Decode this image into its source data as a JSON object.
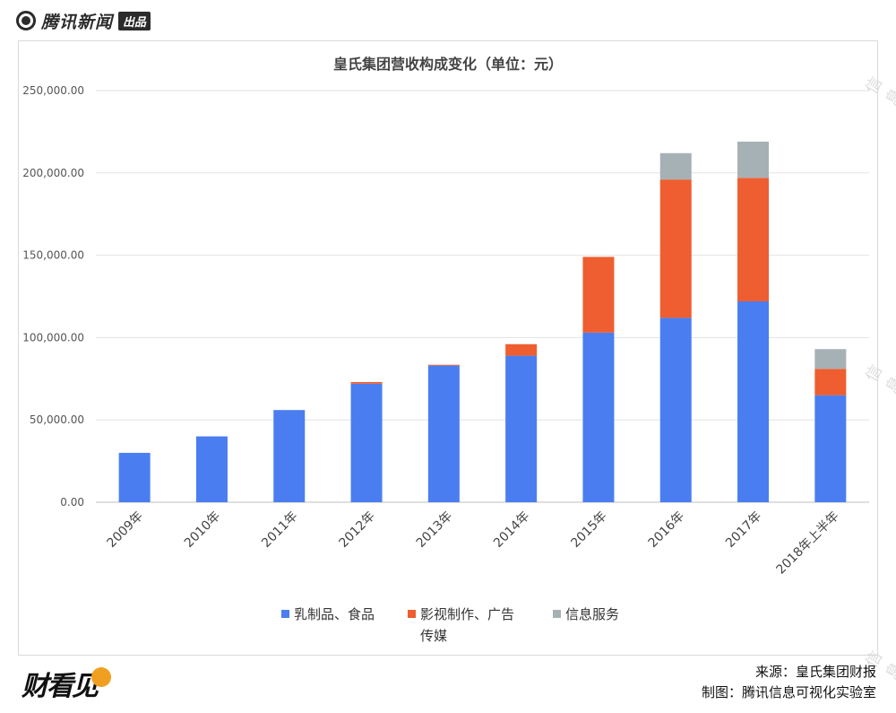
{
  "header": {
    "brand": "腾讯新闻",
    "badge": "出品"
  },
  "footer": {
    "logo_text": "财看见",
    "source": "来源：皇氏集团财报",
    "maker": "制图：腾讯信息可视化实验室"
  },
  "watermark_text": "信息",
  "chart_data": {
    "type": "bar",
    "stacked": true,
    "title": "皇氏集团营收构成变化（单位：元）",
    "categories": [
      "2009年",
      "2010年",
      "2011年",
      "2012年",
      "2013年",
      "2014年",
      "2015年",
      "2016年",
      "2017年",
      "2018年上半年"
    ],
    "series": [
      {
        "name": "乳制品、食品",
        "color": "#4a7ef0",
        "values": [
          30000,
          40000,
          56000,
          72000,
          83000,
          89000,
          103000,
          112000,
          122000,
          65000
        ]
      },
      {
        "name": "影视制作、广告传媒",
        "color": "#ee5e30",
        "values": [
          0,
          0,
          0,
          1000,
          500,
          7000,
          46000,
          84000,
          75000,
          16000
        ]
      },
      {
        "name": "信息服务",
        "color": "#a6b1b5",
        "values": [
          0,
          0,
          0,
          0,
          0,
          0,
          0,
          16000,
          22000,
          12000
        ]
      }
    ],
    "yticks": [
      "0.00",
      "50,000.00",
      "100,000.00",
      "150,000.00",
      "200,000.00",
      "250,000.00"
    ],
    "ylim": [
      0,
      250000
    ],
    "grid": true,
    "legend": "bottom"
  }
}
